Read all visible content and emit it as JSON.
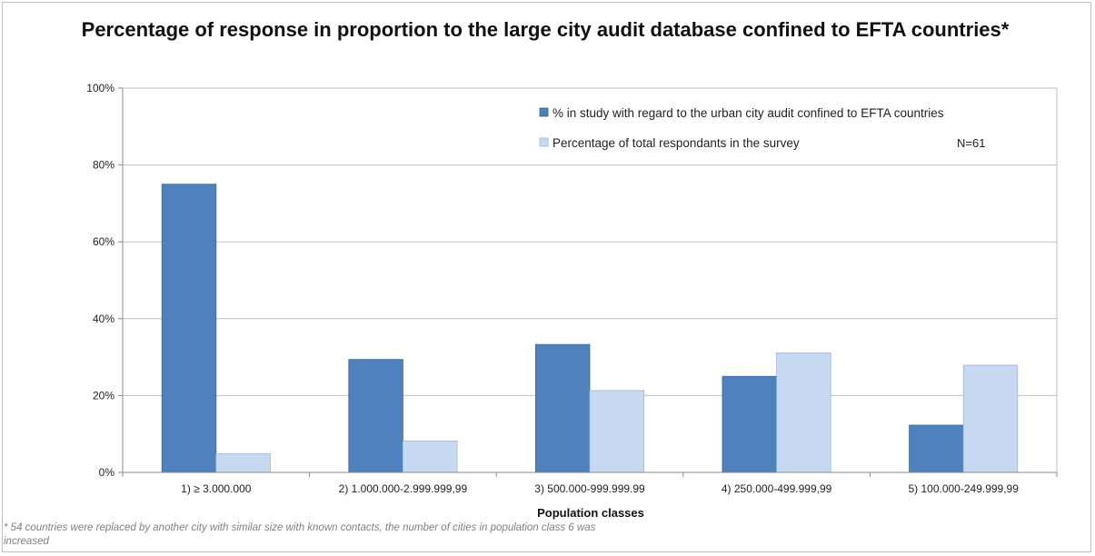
{
  "chart_data": {
    "type": "bar",
    "title": "Percentage of response in proportion to the large city audit database confined to EFTA countries*",
    "xlabel": "Population classes",
    "ylabel": "",
    "ylim": [
      0,
      100
    ],
    "yticks": [
      "0%",
      "20%",
      "40%",
      "60%",
      "80%",
      "100%"
    ],
    "categories": [
      "1) ≥ 3.000.000",
      "2) 1.000.000-2.999.999,99",
      "3) 500.000-999.999.99",
      "4) 250.000-499.999,99",
      "5) 100.000-249.999,99"
    ],
    "series": [
      {
        "name": "% in study with regard to the urban city audit confined to EFTA countries",
        "color": "#4f81bd",
        "values": [
          75,
          29.4,
          33.3,
          25,
          12.3
        ]
      },
      {
        "name": "Percentage of total respondants in the survey",
        "color": "#c6d9f1",
        "values": [
          4.9,
          8.2,
          21.3,
          31.1,
          27.9
        ]
      }
    ],
    "annotation": "N=61",
    "legend_position": "top-right",
    "grid": true
  },
  "footnote": "* 54 countries were replaced by another city with similar size with known  contacts, the number of cities in population class 6 was increased"
}
